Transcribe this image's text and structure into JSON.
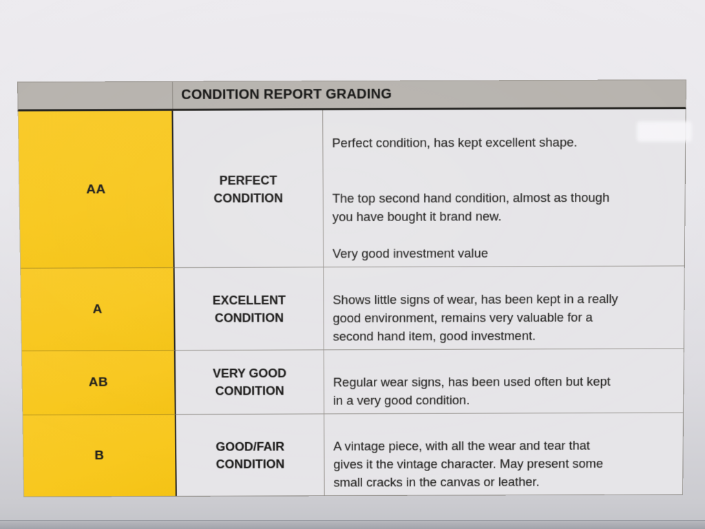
{
  "document": {
    "title": "CONDITION REPORT GRADING",
    "rows": [
      {
        "grade": "AA",
        "label": "PERFECT\nCONDITION",
        "description": "Perfect condition, has kept excellent shape.\n\n\nThe top second hand condition, almost as though\nyou have bought it brand new.\n\nVery good investment value"
      },
      {
        "grade": "A",
        "label": "EXCELLENT\nCONDITION",
        "description": "Shows little signs of wear, has been kept in a really\ngood environment, remains very valuable for a\nsecond hand item, good investment."
      },
      {
        "grade": "AB",
        "label": "VERY GOOD\nCONDITION",
        "description": "Regular wear signs, has been used often but kept\nin a very good condition."
      },
      {
        "grade": "B",
        "label": "GOOD/FAIR\nCONDITION",
        "description": "A vintage piece, with all the wear and tear that\ngives it the vintage character. May present some\nsmall cracks in the canvas or leather."
      }
    ],
    "colors": {
      "grade_column": "#f8c81f",
      "header_bar": "#b7b3ae",
      "cell_background": "#e6e5e8",
      "paper": "#e9e8ec",
      "text": "#1d1c1a"
    }
  }
}
